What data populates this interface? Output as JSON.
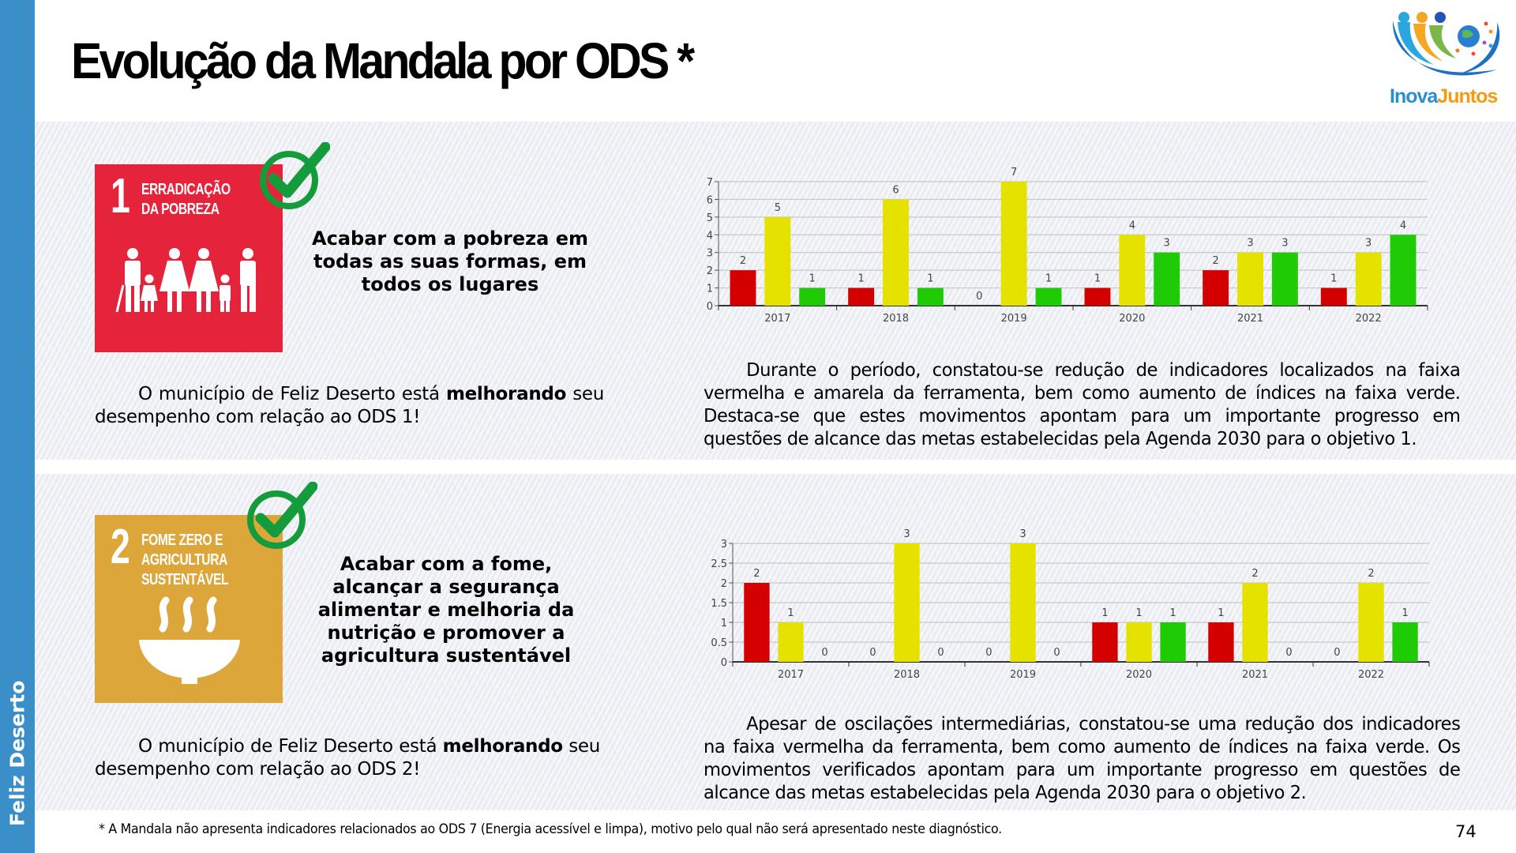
{
  "sidebar": {
    "municipality": "Feliz Deserto",
    "color": "#3a8fc8"
  },
  "header": {
    "title": "Evolução da Mandala por ODS *"
  },
  "logo": {
    "text_part1": "Inova",
    "text_part2": "Juntos",
    "colors": {
      "inova": "#2a8fd0",
      "juntos": "#f39c12"
    }
  },
  "sections": [
    {
      "sdg_number": "1",
      "sdg_label_line1": "ERRADICAÇÃO",
      "sdg_label_line2": "DA POBREZA",
      "sdg_label_line3": "",
      "sdg_color": "#e5243b",
      "sdg_icon": "family-icon",
      "status_icon": "check-circle-icon",
      "goal_text": "Acabar com a pobreza em todas as suas formas, em todos os lugares",
      "status_prefix": "O município de Feliz Deserto está ",
      "status_bold": "melhorando",
      "status_suffix": " seu desempenho com relação ao ODS 1!",
      "description": "Durante o período, constatou-se redução de indicadores localizados na faixa vermelha e amarela da ferramenta, bem como aumento de índices na faixa verde. Destaca-se que estes movimentos apontam para um importante progresso em questões de alcance das metas estabelecidas pela Agenda 2030 para o objetivo 1."
    },
    {
      "sdg_number": "2",
      "sdg_label_line1": "FOME ZERO E",
      "sdg_label_line2": "AGRICULTURA",
      "sdg_label_line3": "SUSTENTÁVEL",
      "sdg_color": "#dda63a",
      "sdg_icon": "soup-bowl-icon",
      "status_icon": "check-circle-icon",
      "goal_text": "Acabar com a fome, alcançar a segurança alimentar e melhoria da nutrição e promover a agricultura sustentável",
      "status_prefix": "O município de Feliz Deserto está ",
      "status_bold": "melhorando",
      "status_suffix": " seu desempenho com relação ao ODS 2!",
      "description": "Apesar de oscilações intermediárias, constatou-se uma redução dos indicadores na faixa vermelha da ferramenta, bem como aumento de índices na faixa verde. Os movimentos verificados apontam para um importante progresso em questões de alcance das metas estabelecidas pela Agenda 2030 para o objetivo 2."
    }
  ],
  "chart_data": [
    {
      "type": "bar",
      "title": "",
      "xlabel": "",
      "ylabel": "",
      "categories": [
        "2017",
        "2018",
        "2019",
        "2020",
        "2021",
        "2022"
      ],
      "series": [
        {
          "name": "Faixa vermelha",
          "color": "#d40000",
          "values": [
            2,
            1,
            0,
            1,
            2,
            1
          ]
        },
        {
          "name": "Faixa amarela",
          "color": "#e6e200",
          "values": [
            5,
            6,
            7,
            4,
            3,
            3
          ]
        },
        {
          "name": "Faixa verde",
          "color": "#1ecb05",
          "values": [
            1,
            1,
            1,
            3,
            3,
            4
          ]
        }
      ],
      "ylim": [
        0,
        7
      ],
      "yticks": [
        0,
        1,
        2,
        3,
        4,
        5,
        6,
        7
      ],
      "grid": true,
      "data_labels": true,
      "legend": "none"
    },
    {
      "type": "bar",
      "title": "",
      "xlabel": "",
      "ylabel": "",
      "categories": [
        "2017",
        "2018",
        "2019",
        "2020",
        "2021",
        "2022"
      ],
      "series": [
        {
          "name": "Faixa vermelha",
          "color": "#d40000",
          "values": [
            2,
            0,
            0,
            1,
            1,
            0
          ]
        },
        {
          "name": "Faixa amarela",
          "color": "#e6e200",
          "values": [
            1,
            3,
            3,
            1,
            2,
            2
          ]
        },
        {
          "name": "Faixa verde",
          "color": "#1ecb05",
          "values": [
            0,
            0,
            0,
            1,
            0,
            1
          ]
        }
      ],
      "ylim": [
        0,
        3
      ],
      "yticks": [
        0,
        0.5,
        1,
        1.5,
        2,
        2.5,
        3
      ],
      "grid": true,
      "data_labels": true,
      "legend": "none"
    }
  ],
  "footer": {
    "footnote": "* A Mandala não apresenta indicadores relacionados ao ODS 7 (Energia acessível e limpa), motivo pelo qual não será apresentado neste diagnóstico.",
    "page_number": "74"
  }
}
